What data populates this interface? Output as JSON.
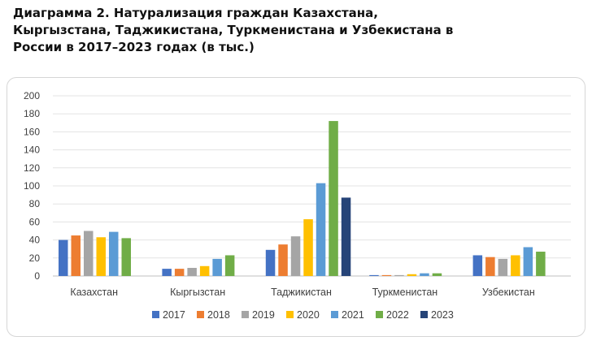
{
  "title": "Диаграмма 2. Натурализация граждан Казахстана, Кыргызстана, Таджикистана, Туркменистана и Узбекистана в России в 2017–2023 годах (в тыс.)",
  "chart_data": {
    "type": "bar",
    "title": "Диаграмма 2. Натурализация граждан Казахстана, Кыргызстана, Таджикистана, Туркменистана и Узбекистана в России в 2017–2023 годах (в тыс.)",
    "xlabel": "",
    "ylabel": "",
    "ylim": [
      0,
      200
    ],
    "yticks": [
      0,
      20,
      40,
      60,
      80,
      100,
      120,
      140,
      160,
      180,
      200
    ],
    "grid": "horizontal",
    "legend": "bottom",
    "categories": [
      "Казахстан",
      "Кыргызстан",
      "Таджикистан",
      "Туркменистан",
      "Узбекистан"
    ],
    "series": [
      {
        "name": "2017",
        "color": "#4472c4",
        "values": [
          40,
          8,
          29,
          1,
          23
        ]
      },
      {
        "name": "2018",
        "color": "#ed7d31",
        "values": [
          45,
          8,
          35,
          1,
          21
        ]
      },
      {
        "name": "2019",
        "color": "#a5a5a5",
        "values": [
          50,
          9,
          44,
          1,
          19
        ]
      },
      {
        "name": "2020",
        "color": "#ffc000",
        "values": [
          43,
          11,
          63,
          2,
          23
        ]
      },
      {
        "name": "2021",
        "color": "#5b9bd5",
        "values": [
          49,
          19,
          103,
          3,
          32
        ]
      },
      {
        "name": "2022",
        "color": "#70ad47",
        "values": [
          42,
          23,
          172,
          3,
          27
        ]
      },
      {
        "name": "2023",
        "color": "#264478",
        "values": [
          null,
          null,
          87,
          null,
          null
        ]
      }
    ]
  }
}
